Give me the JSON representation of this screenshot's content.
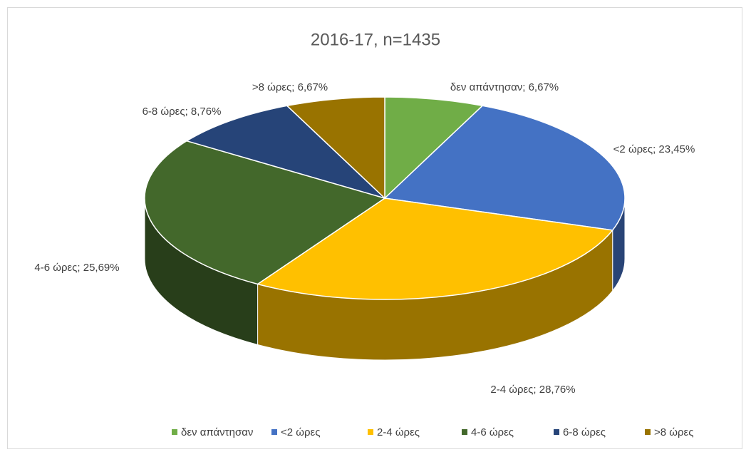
{
  "chart_data": {
    "type": "pie",
    "title": "2016-17, n=1435",
    "categories": [
      "δεν απάντησαν",
      "<2 ώρες",
      "2-4 ώρες",
      "4-6 ώρες",
      "6-8 ώρες",
      ">8 ώρες"
    ],
    "values": [
      6.67,
      23.45,
      28.76,
      25.69,
      8.76,
      6.67
    ],
    "value_labels": [
      "δεν απάντησαν; 6,67%",
      "<2 ώρες; 23,45%",
      "2-4 ώρες; 28,76%",
      "4-6 ώρες; 25,69%",
      "6-8 ώρες; 8,76%",
      ">8 ώρες; 6,67%"
    ],
    "colors": [
      "#70ad47",
      "#4472c4",
      "#ffc000",
      "#43682b",
      "#264478",
      "#997300"
    ],
    "legend": "bottom"
  }
}
